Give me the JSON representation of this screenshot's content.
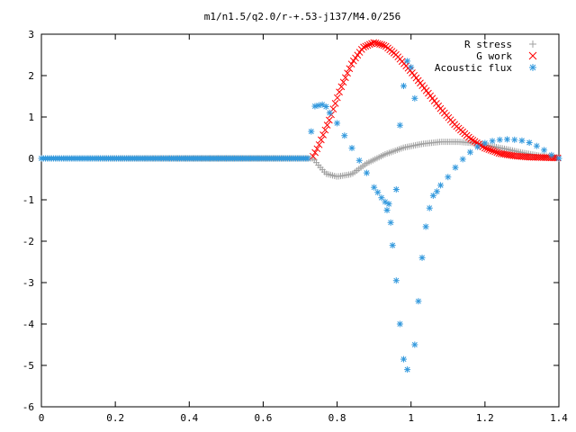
{
  "chart_data": {
    "type": "scatter",
    "title": "m1/n1.5/q2.0/r-+.53-j137/M4.0/256",
    "xlabel": "",
    "ylabel": "",
    "xlim": [
      0,
      1.4
    ],
    "ylim": [
      -6,
      3
    ],
    "grid": false,
    "legend": "top-right",
    "x_ticks": [
      "0",
      "0.2",
      "0.4",
      "0.6",
      "0.8",
      "1",
      "1.2",
      "1.4"
    ],
    "y_ticks": [
      "3",
      "2",
      "1",
      "0",
      "-1",
      "-2",
      "-3",
      "-4",
      "-5",
      "-6"
    ],
    "series": [
      {
        "name": "R stress",
        "marker": "plus",
        "color": "#a0a0a0",
        "x_start": 0,
        "x_end": 1.4,
        "x_step": 0.00547,
        "x": [
          0,
          0.735,
          0.75,
          0.77,
          0.8,
          0.84,
          0.88,
          0.93,
          0.98,
          1.03,
          1.08,
          1.13,
          1.18,
          1.22,
          1.26,
          1.3,
          1.35,
          1.4
        ],
        "y": [
          0,
          0,
          -0.17,
          -0.37,
          -0.44,
          -0.38,
          -0.12,
          0.1,
          0.26,
          0.35,
          0.4,
          0.4,
          0.36,
          0.29,
          0.22,
          0.14,
          0.06,
          0.02
        ]
      },
      {
        "name": "G work",
        "marker": "cross",
        "color": "#ff0000",
        "x_start": 0.735,
        "x_end": 1.4,
        "x_step": 0.00547,
        "x": [
          0.735,
          0.75,
          0.78,
          0.81,
          0.84,
          0.87,
          0.9,
          0.93,
          0.96,
          1.0,
          1.04,
          1.08,
          1.12,
          1.16,
          1.2,
          1.24,
          1.28,
          1.32,
          1.36,
          1.4
        ],
        "y": [
          0.05,
          0.3,
          0.95,
          1.7,
          2.3,
          2.68,
          2.8,
          2.72,
          2.5,
          2.1,
          1.65,
          1.2,
          0.8,
          0.48,
          0.25,
          0.12,
          0.06,
          0.03,
          0.02,
          0.01
        ]
      },
      {
        "name": "Acoustic flux",
        "marker": "star",
        "color": "#3399dd",
        "points": [
          [
            0.73,
            0.65
          ],
          [
            0.74,
            1.26
          ],
          [
            0.75,
            1.28
          ],
          [
            0.76,
            1.3
          ],
          [
            0.77,
            1.25
          ],
          [
            0.78,
            1.1
          ],
          [
            0.8,
            0.85
          ],
          [
            0.82,
            0.55
          ],
          [
            0.84,
            0.25
          ],
          [
            0.86,
            -0.05
          ],
          [
            0.88,
            -0.35
          ],
          [
            0.9,
            -0.7
          ],
          [
            0.91,
            -0.82
          ],
          [
            0.92,
            -0.95
          ],
          [
            0.93,
            -1.05
          ],
          [
            0.935,
            -1.25
          ],
          [
            0.94,
            -1.1
          ],
          [
            0.945,
            -1.55
          ],
          [
            0.95,
            -2.1
          ],
          [
            0.96,
            -2.95
          ],
          [
            0.97,
            -4.0
          ],
          [
            0.98,
            -4.85
          ],
          [
            0.99,
            -5.1
          ],
          [
            0.96,
            -0.75
          ],
          [
            0.97,
            0.8
          ],
          [
            0.98,
            1.75
          ],
          [
            0.99,
            2.35
          ],
          [
            1.0,
            2.2
          ],
          [
            1.01,
            1.45
          ],
          [
            1.01,
            -4.5
          ],
          [
            1.02,
            -3.45
          ],
          [
            1.03,
            -2.4
          ],
          [
            1.04,
            -1.65
          ],
          [
            1.05,
            -1.2
          ],
          [
            1.06,
            -0.9
          ],
          [
            1.07,
            -0.8
          ],
          [
            1.08,
            -0.65
          ],
          [
            1.1,
            -0.45
          ],
          [
            1.12,
            -0.22
          ],
          [
            1.14,
            -0.02
          ],
          [
            1.16,
            0.15
          ],
          [
            1.18,
            0.28
          ],
          [
            1.2,
            0.37
          ],
          [
            1.22,
            0.42
          ],
          [
            1.24,
            0.45
          ],
          [
            1.26,
            0.46
          ],
          [
            1.28,
            0.45
          ],
          [
            1.3,
            0.43
          ],
          [
            1.32,
            0.38
          ],
          [
            1.34,
            0.3
          ],
          [
            1.36,
            0.2
          ],
          [
            1.38,
            0.08
          ],
          [
            1.4,
            0.0
          ]
        ],
        "flat_start": 0,
        "flat_end": 0.725,
        "flat_step": 0.0055
      }
    ]
  }
}
